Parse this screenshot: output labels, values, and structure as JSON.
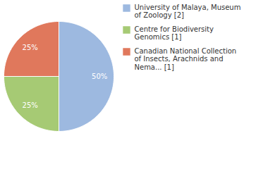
{
  "chart_data": {
    "type": "pie",
    "categories": [
      "University of Malaya, Museum of Zoology [2]",
      "Centre for Biodiversity Genomics [1]",
      "Canadian National Collection of Insects, Arachnids and Nema... [1]"
    ],
    "values": [
      50,
      25,
      25
    ],
    "value_labels": [
      "50%",
      "25%",
      "25%"
    ],
    "colors": [
      "#9db9e0",
      "#a6ca74",
      "#e0785c"
    ],
    "data_labels": true,
    "legend": "right"
  }
}
